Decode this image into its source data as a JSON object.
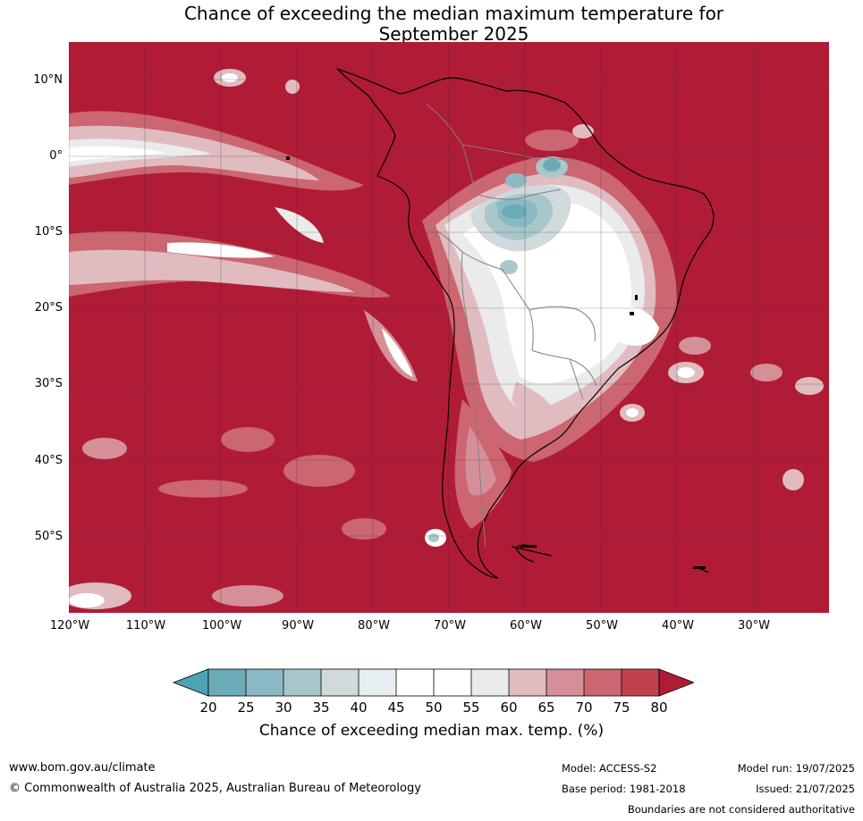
{
  "title": {
    "line1": "Chance of exceeding the median maximum temperature for",
    "line2": "September 2025"
  },
  "map": {
    "lat_labels": [
      "10°N",
      "0°",
      "10°S",
      "20°S",
      "30°S",
      "40°S",
      "50°S"
    ],
    "lon_labels": [
      "120°W",
      "110°W",
      "100°W",
      "90°W",
      "80°W",
      "70°W",
      "60°W",
      "50°W",
      "40°W",
      "30°W"
    ],
    "colors": {
      "ocean_high": "#b01c36",
      "c75_80": "#c1424f",
      "c70_75": "#cc6671",
      "c65_70": "#d58f98",
      "c60_65": "#e0bcc1",
      "c55_60": "#ebebeb",
      "c50_55": "#ffffff",
      "c45_50": "#ffffff",
      "c40_45": "#e7eff2",
      "c35_40": "#d0d9dc",
      "c30_35": "#a9c7cb",
      "c25_30": "#8ab9c4",
      "c20_25": "#6aabb7",
      "below20": "#4ca3b1",
      "coastline": "#000000",
      "borders": "#808080",
      "grid": "#333333"
    }
  },
  "colorbar": {
    "ticks": [
      "20",
      "25",
      "30",
      "35",
      "40",
      "45",
      "50",
      "55",
      "60",
      "65",
      "70",
      "75",
      "80"
    ],
    "title": "Chance of exceeding median max. temp. (%)"
  },
  "footer": {
    "website": "www.bom.gov.au/climate",
    "copyright": "© Commonwealth of Australia 2025, Australian Bureau of Meteorology",
    "model": "Model: ACCESS-S2",
    "base_period": "Base period: 1981-2018",
    "model_run": "Model run: 19/07/2025",
    "issued": "Issued: 21/07/2025",
    "disclaimer": "Boundaries are not considered authoritative"
  }
}
